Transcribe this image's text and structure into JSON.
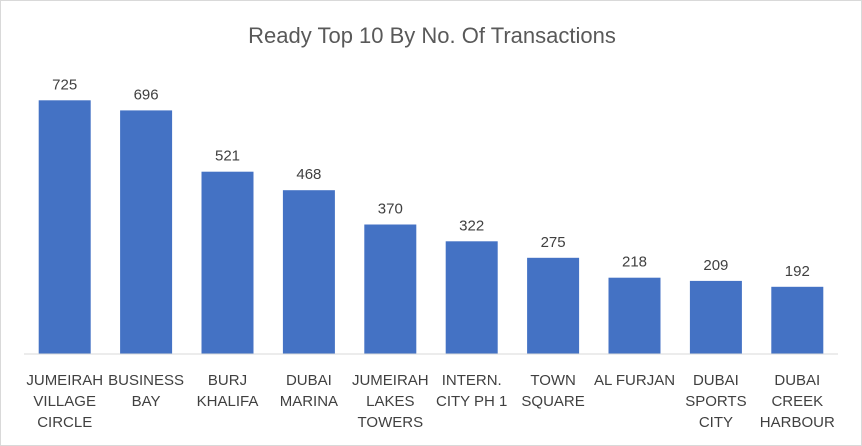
{
  "chart_data": {
    "type": "bar",
    "title": "Ready Top 10 By No. Of Transactions",
    "xlabel": "",
    "ylabel": "",
    "categories": [
      "JUMEIRAH VILLAGE CIRCLE",
      "BUSINESS BAY",
      "BURJ KHALIFA",
      "DUBAI MARINA",
      "JUMEIRAH LAKES TOWERS",
      "INTERN. CITY PH 1",
      "TOWN SQUARE",
      "AL FURJAN",
      "DUBAI SPORTS CITY",
      "DUBAI CREEK HARBOUR"
    ],
    "category_lines": [
      [
        "JUMEIRAH",
        "VILLAGE",
        "CIRCLE"
      ],
      [
        "BUSINESS",
        "BAY"
      ],
      [
        "BURJ",
        "KHALIFA"
      ],
      [
        "DUBAI",
        "MARINA"
      ],
      [
        "JUMEIRAH",
        "LAKES",
        "TOWERS"
      ],
      [
        "INTERN.",
        "CITY PH 1"
      ],
      [
        "TOWN",
        "SQUARE"
      ],
      [
        "AL FURJAN"
      ],
      [
        "DUBAI",
        "SPORTS",
        "CITY"
      ],
      [
        "DUBAI",
        "CREEK",
        "HARBOUR"
      ]
    ],
    "values": [
      725,
      696,
      521,
      468,
      370,
      322,
      275,
      218,
      209,
      192
    ],
    "ylim": [
      0,
      800
    ],
    "grid": false,
    "legend": "none",
    "data_labels": true,
    "bar_color": "#4472C4"
  }
}
